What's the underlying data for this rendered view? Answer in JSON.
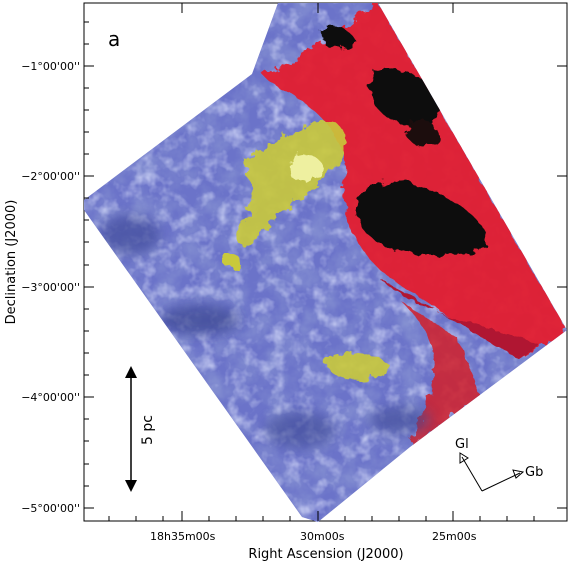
{
  "panel_label": "a",
  "x_axis": {
    "title": "Right Ascension (J2000)",
    "tick_labels": [
      "18h35m00s",
      "30m00s",
      "25m00s"
    ]
  },
  "y_axis": {
    "title": "Declination (J2000)",
    "tick_labels": [
      "−1°00'00''",
      "−2°00'00''",
      "−3°00'00''",
      "−4°00'00''",
      "−5°00'00''"
    ]
  },
  "scale_bar": {
    "label": "5 pc"
  },
  "compass": {
    "gl_label": "Gl",
    "gb_label": "Gb"
  },
  "colors": {
    "background_blue": "#6b73c9",
    "dark_blue": "#3d4a94",
    "light_blue": "#9fa6ea",
    "red": "#e3202e",
    "black": "#0a0a0a",
    "yellow": "#c9c93a"
  }
}
